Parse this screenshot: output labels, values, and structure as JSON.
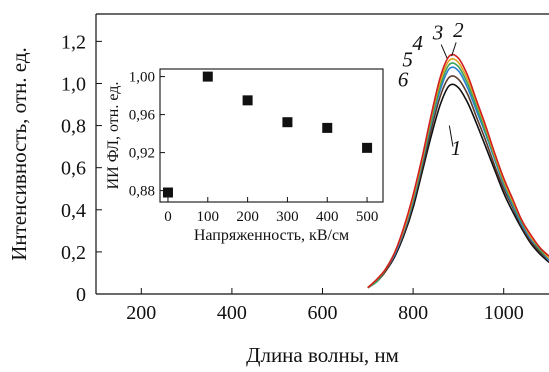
{
  "chart_data": [
    {
      "type": "line",
      "xlabel": "Длина волны, нм",
      "ylabel": "Интенсивность, отн. ед.",
      "xlim": [
        100,
        1100
      ],
      "ylim": [
        0,
        1.33
      ],
      "xticks": [
        200,
        400,
        600,
        800,
        1000
      ],
      "xtick_labels": [
        "200",
        "400",
        "600",
        "800",
        "1000"
      ],
      "yticks": [
        0,
        0.2,
        0.4,
        0.6,
        0.8,
        1.0,
        1.2
      ],
      "ytick_labels": [
        "0",
        "0,2",
        "0,4",
        "0,6",
        "0,8",
        "1,0",
        "1,2"
      ],
      "grid": false,
      "x": [
        700,
        720,
        740,
        760,
        780,
        800,
        820,
        840,
        860,
        880,
        900,
        920,
        940,
        960,
        980,
        1000,
        1020,
        1040,
        1060,
        1080,
        1100
      ],
      "series": [
        {
          "name": "1",
          "color": "#111111",
          "peak": 1.0,
          "values": [
            0.03,
            0.06,
            0.11,
            0.18,
            0.28,
            0.41,
            0.58,
            0.75,
            0.9,
            0.99,
            0.98,
            0.91,
            0.81,
            0.7,
            0.59,
            0.48,
            0.39,
            0.31,
            0.24,
            0.19,
            0.15
          ]
        },
        {
          "name": "6",
          "color": "#5a3a2a",
          "peak": 1.04,
          "values": [
            0.03,
            0.06,
            0.11,
            0.19,
            0.29,
            0.43,
            0.6,
            0.78,
            0.94,
            1.03,
            1.02,
            0.95,
            0.84,
            0.73,
            0.61,
            0.5,
            0.41,
            0.32,
            0.25,
            0.2,
            0.16
          ]
        },
        {
          "name": "5",
          "color": "#2a7fcf",
          "peak": 1.08,
          "values": [
            0.03,
            0.06,
            0.12,
            0.19,
            0.3,
            0.44,
            0.62,
            0.81,
            0.97,
            1.07,
            1.06,
            0.98,
            0.87,
            0.76,
            0.64,
            0.52,
            0.42,
            0.33,
            0.26,
            0.21,
            0.16
          ]
        },
        {
          "name": "4",
          "color": "#3aa35a",
          "peak": 1.1,
          "values": [
            0.03,
            0.06,
            0.12,
            0.2,
            0.31,
            0.45,
            0.63,
            0.82,
            0.99,
            1.09,
            1.08,
            1.0,
            0.89,
            0.77,
            0.65,
            0.53,
            0.43,
            0.34,
            0.27,
            0.21,
            0.17
          ]
        },
        {
          "name": "3",
          "color": "#e0a020",
          "peak": 1.12,
          "values": [
            0.03,
            0.07,
            0.12,
            0.2,
            0.31,
            0.46,
            0.64,
            0.84,
            1.01,
            1.11,
            1.1,
            1.02,
            0.91,
            0.79,
            0.66,
            0.54,
            0.44,
            0.35,
            0.27,
            0.22,
            0.17
          ]
        },
        {
          "name": "2",
          "color": "#d02020",
          "peak": 1.14,
          "values": [
            0.03,
            0.07,
            0.12,
            0.2,
            0.32,
            0.47,
            0.65,
            0.85,
            1.03,
            1.13,
            1.12,
            1.04,
            0.92,
            0.8,
            0.67,
            0.55,
            0.45,
            0.35,
            0.28,
            0.22,
            0.18
          ]
        }
      ],
      "curve_labels": [
        {
          "text": "1",
          "x": 895,
          "y": 0.66
        },
        {
          "text": "6",
          "x": 778,
          "y": 0.985
        },
        {
          "text": "5",
          "x": 788,
          "y": 1.08
        },
        {
          "text": "4",
          "x": 810,
          "y": 1.16
        },
        {
          "text": "3",
          "x": 855,
          "y": 1.21
        },
        {
          "text": "2",
          "x": 900,
          "y": 1.22
        }
      ]
    },
    {
      "type": "scatter",
      "xlabel": "Напряженность, кВ/см",
      "ylabel": "ИИ ФЛ, отн. ед.",
      "xlim": [
        -20,
        540
      ],
      "ylim": [
        0.868,
        1.008
      ],
      "xticks": [
        0,
        100,
        200,
        300,
        400,
        500
      ],
      "xtick_labels": [
        "0",
        "100",
        "200",
        "300",
        "400",
        "500"
      ],
      "yticks": [
        0.88,
        0.92,
        0.96,
        1.0
      ],
      "ytick_labels": [
        "0,88",
        "0,92",
        "0,96",
        "1,00"
      ],
      "x": [
        0,
        100,
        200,
        300,
        400,
        500
      ],
      "y": [
        0.878,
        1.0,
        0.975,
        0.952,
        0.946,
        0.925
      ],
      "marker": "square",
      "color": "#111111"
    }
  ]
}
